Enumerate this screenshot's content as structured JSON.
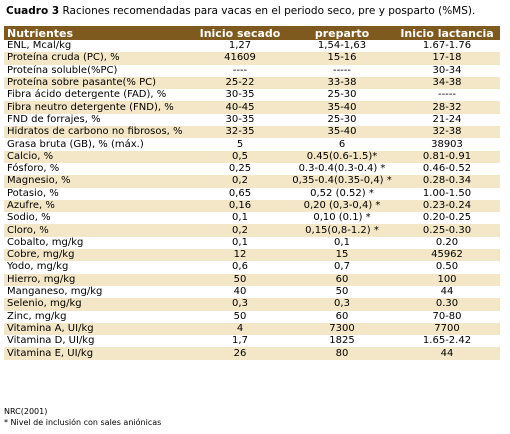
{
  "caption": {
    "label": "Cuadro 3",
    "text": "  Raciones recomendadas para vacas en el periodo seco,  pre y posparto (%MS)."
  },
  "table": {
    "headers": [
      "Nutrientes",
      "Inicio secado",
      "preparto",
      "Inicio lactancia"
    ],
    "rows": [
      [
        "ENL, Mcal/kg",
        "1,27",
        "1,54-1,63",
        "1.67-1.76"
      ],
      [
        "Proteína cruda (PC), %",
        "41609",
        "15-16",
        "17-18"
      ],
      [
        "Proteína soluble(%PC)",
        "----",
        "-----",
        "30-34"
      ],
      [
        "Proteína sobre pasante(% PC)",
        "25-22",
        "33-38",
        "34-38"
      ],
      [
        "Fibra ácido detergente (FAD), %",
        "30-35",
        "25-30",
        "-----"
      ],
      [
        "Fibra neutro detergente (FND), %",
        "40-45",
        "35-40",
        "28-32"
      ],
      [
        "FND de forrajes, %",
        "30-35",
        "25-30",
        "21-24"
      ],
      [
        "Hidratos de carbono no fibrosos, %",
        "32-35",
        "35-40",
        "32-38"
      ],
      [
        "Grasa bruta (GB), % (máx.)",
        "5",
        "6",
        "38903"
      ],
      [
        "Calcio, %",
        "0,5",
        "0.45(0.6-1.5)*",
        "0.81-0.91"
      ],
      [
        "Fósforo, %",
        "0,25",
        "0.3-0.4(0.3-0.4) *",
        "0.46-0.52"
      ],
      [
        "Magnesio, %",
        "0,2",
        "0,35-0.4(0.35-0,4) *",
        "0.28-0.34"
      ],
      [
        "Potasio, %",
        "0,65",
        "0,52 (0.52) *",
        "1.00-1.50"
      ],
      [
        "Azufre, %",
        "0,16",
        "0,20 (0,3-0,4) *",
        "0.23-0.24"
      ],
      [
        "Sodio, %",
        "0,1",
        "0,10 (0.1) *",
        "0.20-0.25"
      ],
      [
        "Cloro, %",
        "0,2",
        "0,15(0,8-1.2) *",
        "0.25-0.30"
      ],
      [
        "Cobalto, mg/kg",
        "0,1",
        "0,1",
        "0.20"
      ],
      [
        "Cobre, mg/kg",
        "12",
        "15",
        "45962"
      ],
      [
        "Yodo, mg/kg",
        "0,6",
        "0,7",
        "0.50"
      ],
      [
        "Hierro, mg/kg",
        "50",
        "60",
        "100"
      ],
      [
        "Manganeso, mg/kg",
        "40",
        "50",
        "44"
      ],
      [
        "Selenio, mg/kg",
        "0,3",
        "0,3",
        "0.30"
      ],
      [
        "Zinc, mg/kg",
        "50",
        "60",
        "70-80"
      ],
      [
        "Vitamina A, UI/kg",
        "4",
        "7300",
        "7700"
      ],
      [
        "Vitamina D, UI/kg",
        "1,7",
        "1825",
        "1.65-2.42"
      ],
      [
        "Vitamina E, UI/kg",
        "26",
        "80",
        "44"
      ]
    ]
  },
  "footer": {
    "source": "NRC(2001)",
    "note": "* Nivel de inclusión con sales aniónicas"
  },
  "colors": {
    "header_bg": "#7f5a1f",
    "header_text": "#ffffff",
    "alt_row_bg": "#f4e7c7"
  }
}
